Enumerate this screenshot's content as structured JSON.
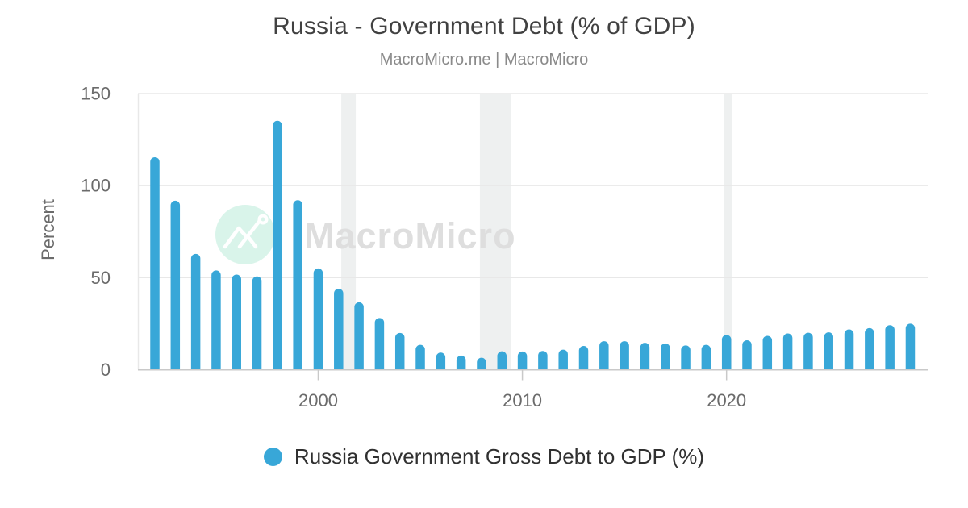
{
  "title": "Russia - Government Debt (% of GDP)",
  "subtitle": "MacroMicro.me | MacroMicro",
  "watermark": {
    "text": "MacroMicro"
  },
  "legend": {
    "label": "Russia Government Gross Debt to GDP (%)"
  },
  "colors": {
    "bar": "#38a7d8",
    "recession_band": "#eef0f0",
    "watermark_badge": "#d9f4ea",
    "watermark_text": "#dedede",
    "axis_line": "#c9c9c9",
    "gridline": "#e8e8e8",
    "tick_text": "#6b6b6b"
  },
  "chart_data": {
    "type": "bar",
    "title": "Russia - Government Debt (% of GDP)",
    "subtitle": "MacroMicro.me | MacroMicro",
    "xlabel": "",
    "ylabel": "Percent",
    "legend_position": "bottom",
    "grid": "horizontal",
    "ylim": [
      0,
      150
    ],
    "yticks": [
      0,
      50,
      100,
      150
    ],
    "xticks": [
      2000,
      2010,
      2020
    ],
    "series_name": "Russia Government Gross Debt to GDP (%)",
    "x": [
      1992,
      1993,
      1994,
      1995,
      1996,
      1997,
      1998,
      1999,
      2000,
      2001,
      2002,
      2003,
      2004,
      2005,
      2006,
      2007,
      2008,
      2009,
      2010,
      2011,
      2012,
      2013,
      2014,
      2015,
      2016,
      2017,
      2018,
      2019,
      2020,
      2021,
      2022,
      2023,
      2024,
      2025,
      2026,
      2027,
      2028,
      2029
    ],
    "values": [
      115.4,
      91.8,
      62.9,
      53.9,
      51.7,
      50.7,
      135.2,
      92.1,
      55.0,
      44.0,
      36.6,
      28.1,
      20.0,
      13.5,
      9.3,
      7.7,
      6.5,
      10.0,
      9.9,
      10.2,
      10.9,
      12.9,
      15.5,
      15.5,
      14.6,
      14.3,
      13.2,
      13.5,
      18.9,
      16.0,
      18.4,
      19.7,
      20.1,
      20.3,
      21.9,
      22.6,
      24.2,
      25.0
    ],
    "recession_bands": [
      [
        2001.13,
        2001.84
      ],
      [
        2007.92,
        2009.46
      ],
      [
        2019.86,
        2020.25
      ]
    ]
  }
}
